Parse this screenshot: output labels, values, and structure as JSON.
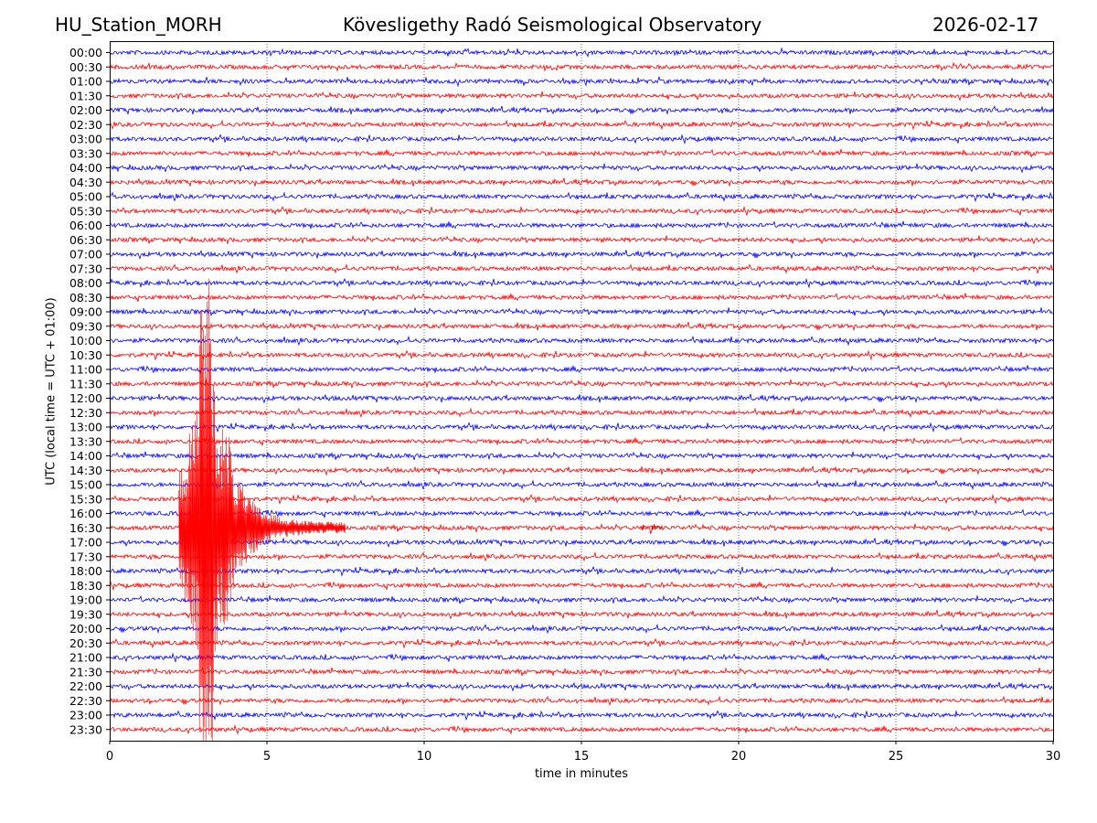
{
  "header": {
    "station": "HU_Station_MORH",
    "title": "Kövesligethy Radó Seismological Observatory",
    "date": "2026-02-17"
  },
  "chart_data": {
    "type": "line",
    "title": "Kövesligethy Radó Seismological Observatory",
    "xlabel": "time in minutes",
    "ylabel": "UTC (local time = UTC + 01:00)",
    "xlim": [
      0,
      30
    ],
    "x_ticks": [
      "0",
      "5",
      "10",
      "15",
      "20",
      "25",
      "30"
    ],
    "x_tick_values": [
      0,
      5,
      10,
      15,
      20,
      25,
      30
    ],
    "row_labels": [
      "00:00",
      "00:30",
      "01:00",
      "01:30",
      "02:00",
      "02:30",
      "03:00",
      "03:30",
      "04:00",
      "04:30",
      "05:00",
      "05:30",
      "06:00",
      "06:30",
      "07:00",
      "07:30",
      "08:00",
      "08:30",
      "09:00",
      "09:30",
      "10:00",
      "10:30",
      "11:00",
      "11:30",
      "12:00",
      "12:30",
      "13:00",
      "13:30",
      "14:00",
      "14:30",
      "15:00",
      "15:30",
      "16:00",
      "16:30",
      "17:00",
      "17:30",
      "18:00",
      "18:30",
      "19:00",
      "19:30",
      "20:00",
      "20:30",
      "21:00",
      "21:30",
      "22:00",
      "22:30",
      "23:00",
      "23:30"
    ],
    "row_colors": [
      "#0000ff",
      "#ff0000"
    ],
    "grid": "vertical dotted at each x tick",
    "event": {
      "row_label": "16:30",
      "onset_minute": 2.2,
      "peak_minute": 3.0,
      "coda_end_minute": 7.5,
      "secondary_burst_minute": 17.2
    }
  }
}
